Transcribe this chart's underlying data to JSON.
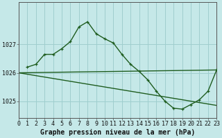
{
  "title": "Graphe pression niveau de la mer (hPa)",
  "bg_color": "#c5e8e8",
  "grid_color": "#9fcece",
  "line_color": "#1e5c1e",
  "xlim": [
    0,
    23
  ],
  "ylim": [
    1024.4,
    1028.5
  ],
  "yticks": [
    1025,
    1026,
    1027
  ],
  "ytick_labels": [
    "1025",
    "1026",
    "1027"
  ],
  "xtick_labels": [
    "0",
    "1",
    "2",
    "3",
    "4",
    "5",
    "6",
    "7",
    "8",
    "9",
    "10",
    "11",
    "12",
    "13",
    "14",
    "15",
    "16",
    "17",
    "18",
    "19",
    "20",
    "21",
    "22",
    "23"
  ],
  "line_flat": {
    "x": [
      0,
      23
    ],
    "y": [
      1026.0,
      1026.1
    ]
  },
  "line_diag": {
    "x": [
      0,
      23
    ],
    "y": [
      1026.0,
      1024.85
    ]
  },
  "line_curve": {
    "x": [
      1,
      2,
      3,
      4,
      5,
      6,
      7,
      8,
      9,
      10,
      11,
      12,
      13,
      14,
      15,
      16,
      17,
      18,
      19,
      20,
      21,
      22,
      23
    ],
    "y": [
      1026.2,
      1026.3,
      1026.65,
      1026.65,
      1026.85,
      1027.1,
      1027.62,
      1027.8,
      1027.38,
      1027.2,
      1027.05,
      1026.65,
      1026.3,
      1026.05,
      1025.75,
      1025.35,
      1025.0,
      1024.75,
      1024.72,
      1024.88,
      1025.05,
      1025.35,
      1026.1
    ]
  },
  "tick_fontsize": 6,
  "title_fontsize": 7,
  "marker_size": 3.5,
  "lw": 1.0
}
